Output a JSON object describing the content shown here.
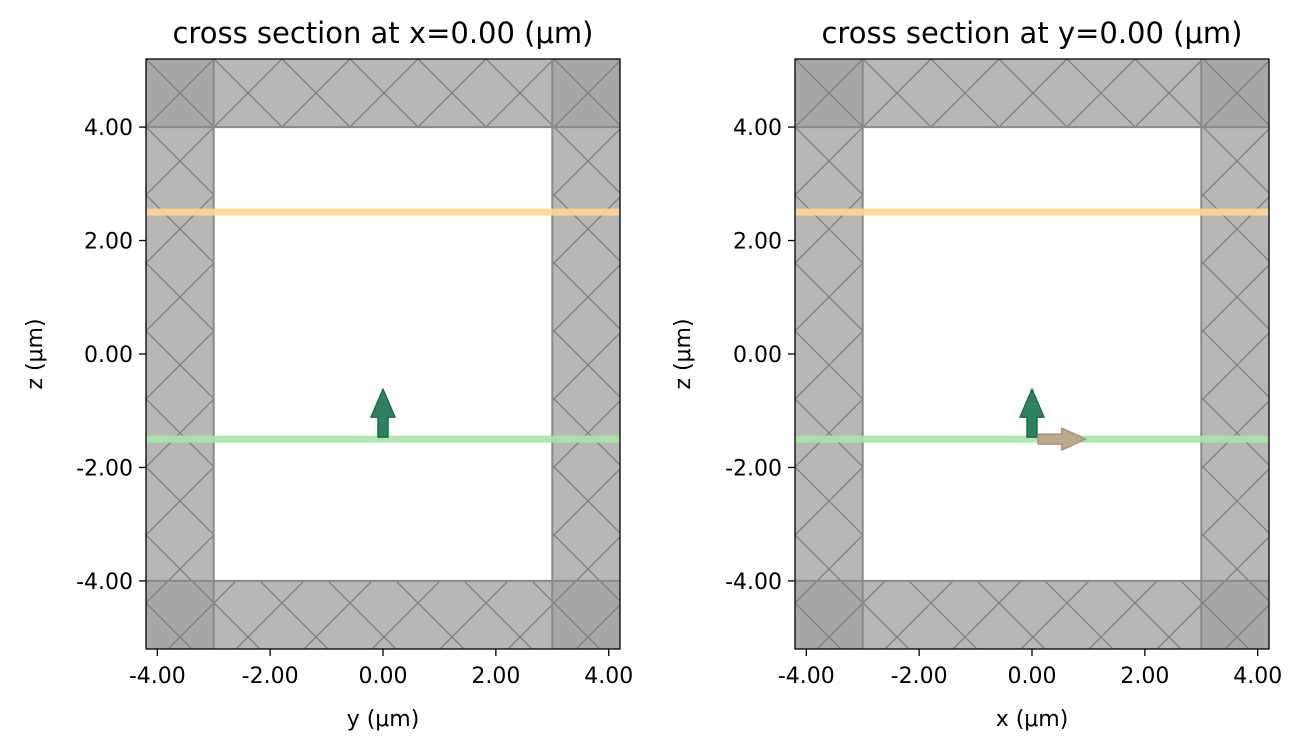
{
  "figure": {
    "background": "#ffffff"
  },
  "colors": {
    "pml_fill": "#a3a3a3",
    "pml_corner_fill": "#8d8d8d",
    "pml_hatch": "#7f7f7f",
    "plane_wave_source": "#ffd78f",
    "field_monitor": "#a6e6a6",
    "source_arrow": "#2e8060",
    "polarization_arrow": "#bca88a",
    "simulation_domain": "#ffffff",
    "axis": "#000000"
  },
  "chart_data": [
    {
      "type": "cross_section",
      "title": "cross section at x=0.00 (μm)",
      "xlabel": "y (μm)",
      "ylabel": "z (μm)",
      "xlim": [
        -4.2,
        4.2
      ],
      "ylim": [
        -5.2,
        5.2
      ],
      "xticks": [
        -4,
        -2,
        0,
        2,
        4
      ],
      "xtick_labels": [
        "-4.00",
        "-2.00",
        "0.00",
        "2.00",
        "4.00"
      ],
      "yticks": [
        4,
        2,
        0,
        -2,
        -4
      ],
      "ytick_labels": [
        "4.00",
        "2.00",
        "0.00",
        "-2.00",
        "-4.00"
      ],
      "domain": {
        "x": [
          -3,
          3
        ],
        "z": [
          -4,
          4
        ]
      },
      "pml_regions": [
        {
          "name": "left",
          "x": [
            -4.2,
            -3
          ],
          "z": [
            -5.2,
            5.2
          ]
        },
        {
          "name": "right",
          "x": [
            3,
            4.2
          ],
          "z": [
            -5.2,
            5.2
          ]
        },
        {
          "name": "top",
          "x": [
            -4.2,
            4.2
          ],
          "z": [
            4,
            5.2
          ]
        },
        {
          "name": "bottom",
          "x": [
            -4.2,
            4.2
          ],
          "z": [
            -5.2,
            -4
          ]
        }
      ],
      "planes": [
        {
          "name": "plane-wave-source",
          "z": 2.5,
          "color_key": "plane_wave_source"
        },
        {
          "name": "field-monitor",
          "z": -1.5,
          "color_key": "field_monitor"
        }
      ],
      "arrows": [
        {
          "name": "source-direction-arrow",
          "x": 0,
          "z": -1.5,
          "dx": 0,
          "dz": 1,
          "color_key": "source_arrow"
        }
      ]
    },
    {
      "type": "cross_section",
      "title": "cross section at y=0.00 (μm)",
      "xlabel": "x (μm)",
      "ylabel": "z (μm)",
      "xlim": [
        -4.2,
        4.2
      ],
      "ylim": [
        -5.2,
        5.2
      ],
      "xticks": [
        -4,
        -2,
        0,
        2,
        4
      ],
      "xtick_labels": [
        "-4.00",
        "-2.00",
        "0.00",
        "2.00",
        "4.00"
      ],
      "yticks": [
        4,
        2,
        0,
        -2,
        -4
      ],
      "ytick_labels": [
        "4.00",
        "2.00",
        "0.00",
        "-2.00",
        "-4.00"
      ],
      "domain": {
        "x": [
          -3,
          3
        ],
        "z": [
          -4,
          4
        ]
      },
      "pml_regions": [
        {
          "name": "left",
          "x": [
            -4.2,
            -3
          ],
          "z": [
            -5.2,
            5.2
          ]
        },
        {
          "name": "right",
          "x": [
            3,
            4.2
          ],
          "z": [
            -5.2,
            5.2
          ]
        },
        {
          "name": "top",
          "x": [
            -4.2,
            4.2
          ],
          "z": [
            4,
            5.2
          ]
        },
        {
          "name": "bottom",
          "x": [
            -4.2,
            4.2
          ],
          "z": [
            -5.2,
            -4
          ]
        }
      ],
      "planes": [
        {
          "name": "plane-wave-source",
          "z": 2.5,
          "color_key": "plane_wave_source"
        },
        {
          "name": "field-monitor",
          "z": -1.5,
          "color_key": "field_monitor"
        }
      ],
      "arrows": [
        {
          "name": "source-direction-arrow",
          "x": 0,
          "z": -1.5,
          "dx": 0,
          "dz": 1,
          "color_key": "source_arrow"
        },
        {
          "name": "polarization-arrow",
          "x": 0,
          "z": -1.5,
          "dx": 1,
          "dz": 0,
          "color_key": "polarization_arrow"
        }
      ]
    }
  ]
}
